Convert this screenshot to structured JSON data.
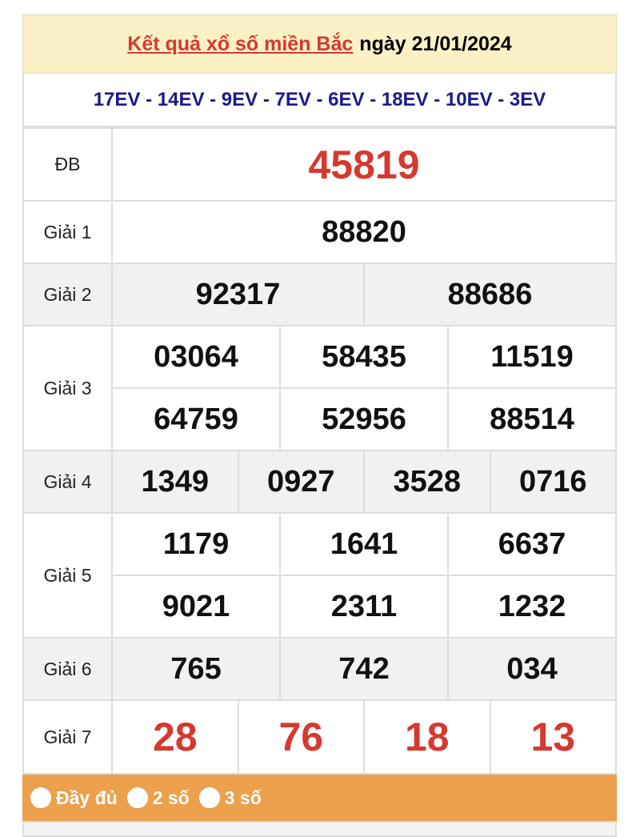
{
  "header": {
    "title_link": "Kết quả xổ số miền Bắc",
    "date_text": "ngày 21/01/2024"
  },
  "codes": "17EV - 14EV - 9EV - 7EV - 6EV - 18EV - 10EV - 3EV",
  "prizes": {
    "db": {
      "label": "ĐB",
      "values": [
        "45819"
      ]
    },
    "g1": {
      "label": "Giải 1",
      "values": [
        "88820"
      ]
    },
    "g2": {
      "label": "Giải 2",
      "values": [
        "92317",
        "88686"
      ]
    },
    "g3": {
      "label": "Giải 3",
      "values": [
        "03064",
        "58435",
        "11519",
        "64759",
        "52956",
        "88514"
      ]
    },
    "g4": {
      "label": "Giải 4",
      "values": [
        "1349",
        "0927",
        "3528",
        "0716"
      ]
    },
    "g5": {
      "label": "Giải 5",
      "values": [
        "1179",
        "1641",
        "6637",
        "9021",
        "2311",
        "1232"
      ]
    },
    "g6": {
      "label": "Giải 6",
      "values": [
        "765",
        "742",
        "034"
      ]
    },
    "g7": {
      "label": "Giải 7",
      "values": [
        "28",
        "76",
        "18",
        "13"
      ]
    }
  },
  "filter": {
    "options": [
      "Đầy đủ",
      "2 số",
      "3 số"
    ]
  },
  "colors": {
    "accent_red": "#d6392f",
    "code_blue": "#1a1a8c",
    "header_bg": "#fbf0c6",
    "filter_bar": "#eca04b"
  }
}
